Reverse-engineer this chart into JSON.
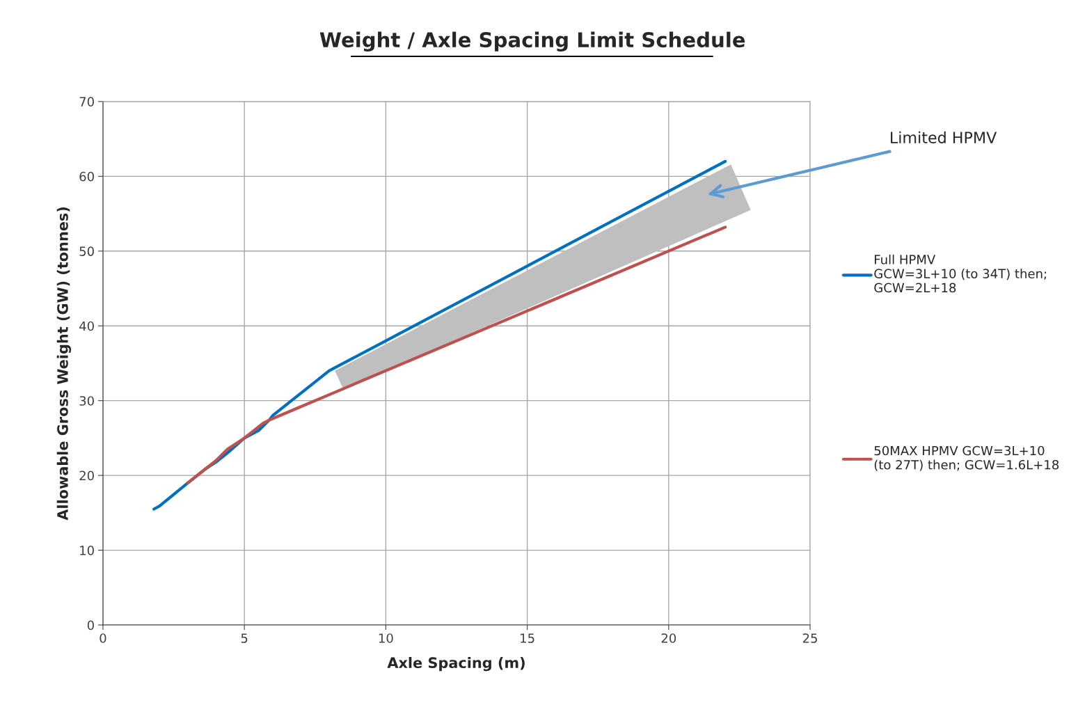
{
  "chart_data": {
    "type": "line",
    "title": "Weight / Axle Spacing Limit Schedule",
    "xlabel": "Axle Spacing (m)",
    "ylabel": "Allowable Gross Weight (GW) (tonnes)",
    "xlim": [
      0,
      25
    ],
    "xticks": [
      0,
      5,
      10,
      15,
      20,
      25
    ],
    "ylim": [
      0,
      70
    ],
    "yticks": [
      0,
      10,
      20,
      30,
      40,
      50,
      60,
      70
    ],
    "grid": true,
    "legend": "right",
    "series": [
      {
        "name": "Full HPMV\nGCW=3L+10 (to 34T) then;\nGCW=2L+18",
        "color": "#0070c0",
        "x": [
          1.8,
          2,
          3,
          3.6,
          4,
          4.4,
          5,
          5.5,
          5.9,
          6,
          8,
          22
        ],
        "values": [
          15.5,
          15.9,
          19,
          20.8,
          21.8,
          23,
          25,
          26,
          27.5,
          28,
          34,
          62
        ]
      },
      {
        "name": "50MAX HPMV GCW=3L+10\n(to 27T) then; GCW=1.6L+18",
        "color": "#c0504d",
        "x": [
          3,
          3.5,
          4,
          4.4,
          5,
          5.67,
          6,
          7,
          8,
          22
        ],
        "values": [
          19,
          20.5,
          22,
          23.5,
          25,
          27,
          27.6,
          29.2,
          30.8,
          53.2
        ]
      }
    ],
    "annotations": [
      "Limited HPMV"
    ]
  }
}
